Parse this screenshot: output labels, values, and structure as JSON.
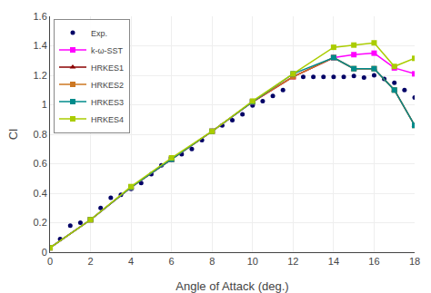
{
  "chart_data": {
    "type": "line",
    "xlabel": "Angle of Attack (deg.)",
    "ylabel": "Cl",
    "xlim": [
      0,
      18
    ],
    "ylim": [
      0,
      1.6
    ],
    "xticks": [
      0,
      2,
      4,
      6,
      8,
      10,
      12,
      14,
      16,
      18
    ],
    "yticks": [
      0,
      0.2,
      0.4,
      0.6,
      0.8,
      1,
      1.2,
      1.4,
      1.6
    ],
    "grid": true,
    "legend": "upper left",
    "series": [
      {
        "name": "Exp.",
        "color": "#000066",
        "marker": "circle",
        "line_style": "none",
        "x": [
          0.0,
          0.5,
          1.0,
          1.5,
          2.0,
          2.5,
          3.0,
          3.5,
          4.0,
          4.5,
          5.0,
          5.5,
          6.0,
          6.5,
          7.0,
          7.5,
          8.0,
          8.5,
          9.0,
          9.5,
          10.0,
          10.5,
          11.0,
          11.5,
          12.0,
          12.5,
          13.0,
          13.5,
          14.0,
          14.5,
          15.0,
          15.5,
          16.0,
          16.5,
          17.0,
          17.5,
          18.0
        ],
        "values": [
          0.03,
          0.09,
          0.18,
          0.2,
          0.22,
          0.3,
          0.37,
          0.39,
          0.43,
          0.47,
          0.53,
          0.59,
          0.63,
          0.665,
          0.7,
          0.76,
          0.82,
          0.86,
          0.895,
          0.935,
          0.995,
          1.025,
          1.06,
          1.1,
          1.19,
          1.19,
          1.19,
          1.19,
          1.19,
          1.19,
          1.195,
          1.185,
          1.2,
          1.175,
          1.15,
          1.1,
          1.05
        ]
      },
      {
        "name": "k-ω-SST",
        "color": "#ff00ff",
        "marker": "square",
        "line_style": "solid",
        "x": [
          0,
          2,
          4,
          6,
          8,
          10,
          12,
          14,
          15,
          16,
          17,
          18
        ],
        "values": [
          0.03,
          0.22,
          0.44,
          0.63,
          0.82,
          1.02,
          1.19,
          1.32,
          1.34,
          1.35,
          1.25,
          1.21
        ]
      },
      {
        "name": "HRKES1",
        "color": "#8b0000",
        "marker": "triangle-up",
        "line_style": "solid",
        "x": [
          0,
          2,
          4,
          6,
          8,
          10,
          12,
          14,
          15,
          16,
          17,
          18
        ],
        "values": [
          0.03,
          0.22,
          0.44,
          0.63,
          0.82,
          1.02,
          1.19,
          1.32,
          1.245,
          1.245,
          1.1,
          0.86
        ]
      },
      {
        "name": "HRKES2",
        "color": "#cc7722",
        "marker": "square",
        "line_style": "solid",
        "x": [
          0,
          2,
          4,
          6,
          8,
          10,
          12,
          14,
          15,
          16,
          17,
          18
        ],
        "values": [
          0.03,
          0.22,
          0.44,
          0.63,
          0.82,
          1.02,
          1.19,
          1.32,
          1.245,
          1.245,
          1.1,
          0.86
        ]
      },
      {
        "name": "HRKES3",
        "color": "#008b8b",
        "marker": "square",
        "line_style": "solid",
        "x": [
          0,
          2,
          4,
          6,
          8,
          10,
          12,
          14,
          15,
          16,
          17,
          18
        ],
        "values": [
          0.03,
          0.22,
          0.44,
          0.63,
          0.82,
          1.02,
          1.21,
          1.32,
          1.245,
          1.245,
          1.1,
          0.86
        ]
      },
      {
        "name": "HRKES4",
        "color": "#aacc00",
        "marker": "square",
        "line_style": "solid",
        "x": [
          0,
          2,
          4,
          6,
          8,
          10,
          12,
          14,
          15,
          16,
          17,
          18
        ],
        "values": [
          0.03,
          0.22,
          0.445,
          0.64,
          0.82,
          1.025,
          1.21,
          1.39,
          1.405,
          1.42,
          1.26,
          1.315
        ]
      }
    ]
  }
}
